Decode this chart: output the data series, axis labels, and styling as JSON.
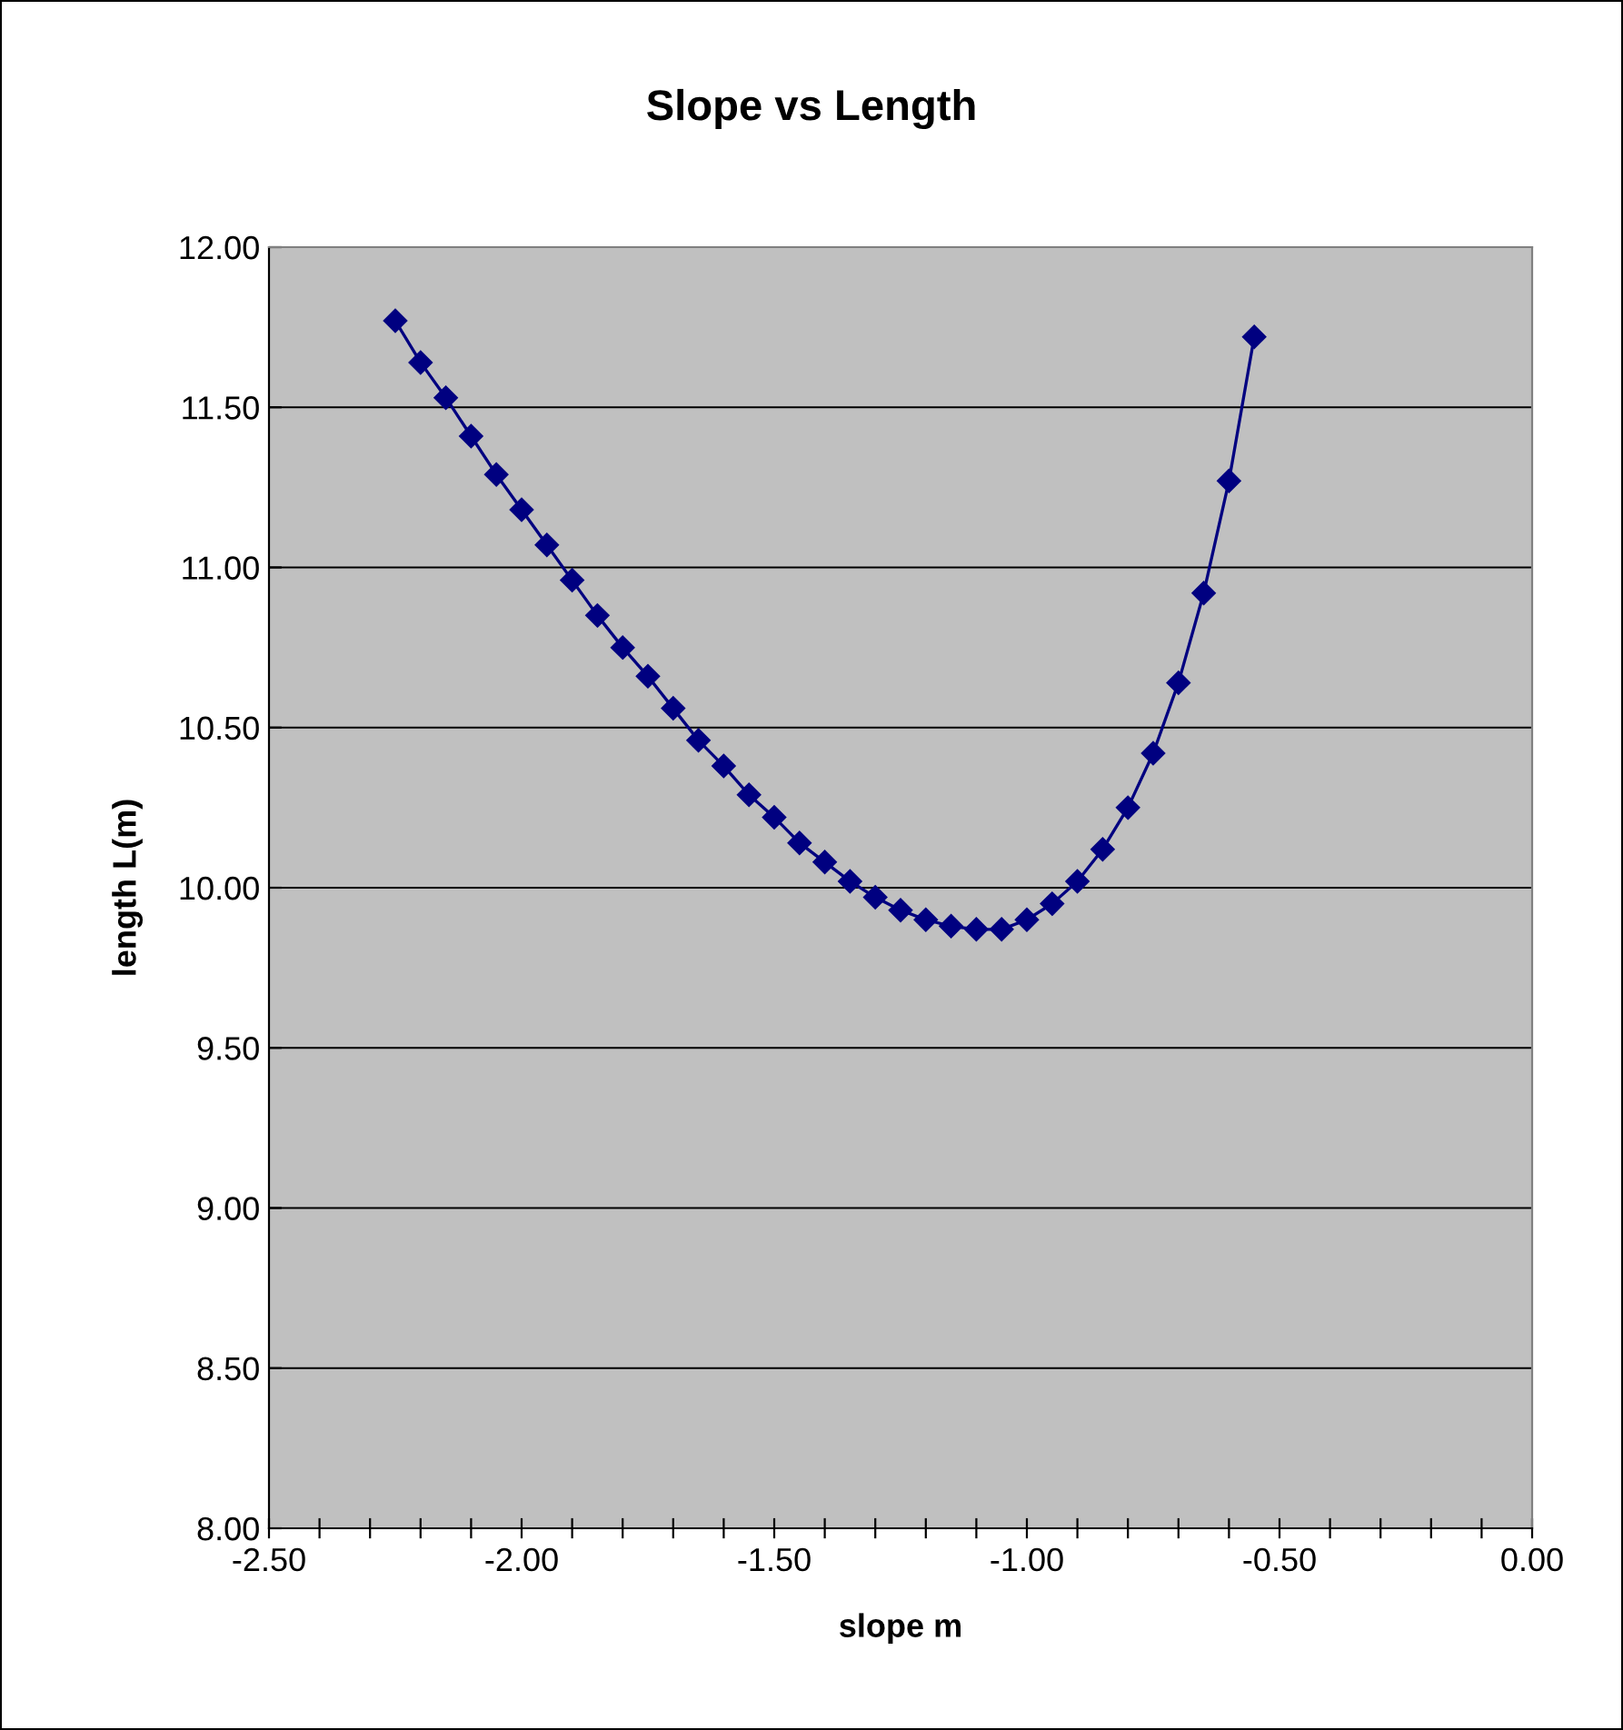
{
  "chart_data": {
    "type": "line",
    "title": "Slope vs Length",
    "xlabel": "slope m",
    "ylabel": "length L(m)",
    "x": [
      -2.25,
      -2.2,
      -2.15,
      -2.1,
      -2.05,
      -2.0,
      -1.95,
      -1.9,
      -1.85,
      -1.8,
      -1.75,
      -1.7,
      -1.65,
      -1.6,
      -1.55,
      -1.5,
      -1.45,
      -1.4,
      -1.35,
      -1.3,
      -1.25,
      -1.2,
      -1.15,
      -1.1,
      -1.05,
      -1.0,
      -0.95,
      -0.9,
      -0.85,
      -0.8,
      -0.75,
      -0.7,
      -0.65,
      -0.6,
      -0.55
    ],
    "series": [
      {
        "color": "#000080",
        "values": [
          11.77,
          11.64,
          11.53,
          11.41,
          11.29,
          11.18,
          11.07,
          10.96,
          10.85,
          10.75,
          10.66,
          10.56,
          10.46,
          10.38,
          10.29,
          10.22,
          10.14,
          10.08,
          10.02,
          9.97,
          9.93,
          9.9,
          9.88,
          9.87,
          9.87,
          9.9,
          9.95,
          10.02,
          10.12,
          10.25,
          10.42,
          10.64,
          10.92,
          11.27,
          11.72
        ]
      }
    ],
    "xlim": [
      -2.5,
      0.0
    ],
    "ylim": [
      8.0,
      12.0
    ],
    "xticks": [
      {
        "value": -2.5,
        "label": "-2.50"
      },
      {
        "value": -2.4,
        "label": null
      },
      {
        "value": -2.3,
        "label": null
      },
      {
        "value": -2.2,
        "label": null
      },
      {
        "value": -2.1,
        "label": null
      },
      {
        "value": -2.0,
        "label": "-2.00"
      },
      {
        "value": -1.9,
        "label": null
      },
      {
        "value": -1.8,
        "label": null
      },
      {
        "value": -1.7,
        "label": null
      },
      {
        "value": -1.6,
        "label": null
      },
      {
        "value": -1.5,
        "label": "-1.50"
      },
      {
        "value": -1.4,
        "label": null
      },
      {
        "value": -1.3,
        "label": null
      },
      {
        "value": -1.2,
        "label": null
      },
      {
        "value": -1.1,
        "label": null
      },
      {
        "value": -1.0,
        "label": "-1.00"
      },
      {
        "value": -0.9,
        "label": null
      },
      {
        "value": -0.8,
        "label": null
      },
      {
        "value": -0.7,
        "label": null
      },
      {
        "value": -0.6,
        "label": null
      },
      {
        "value": -0.5,
        "label": "-0.50"
      },
      {
        "value": -0.4,
        "label": null
      },
      {
        "value": -0.3,
        "label": null
      },
      {
        "value": -0.2,
        "label": null
      },
      {
        "value": -0.1,
        "label": null
      },
      {
        "value": 0.0,
        "label": "0.00"
      }
    ],
    "yticks": [
      {
        "value": 8.0,
        "label": "8.00"
      },
      {
        "value": 8.5,
        "label": "8.50"
      },
      {
        "value": 9.0,
        "label": "9.00"
      },
      {
        "value": 9.5,
        "label": "9.50"
      },
      {
        "value": 10.0,
        "label": "10.00"
      },
      {
        "value": 10.5,
        "label": "10.50"
      },
      {
        "value": 11.0,
        "label": "11.00"
      },
      {
        "value": 11.5,
        "label": "11.50"
      },
      {
        "value": 12.0,
        "label": "12.00"
      }
    ],
    "grid": "y",
    "marker": "diamond",
    "line_style": "solid",
    "legend": false
  }
}
